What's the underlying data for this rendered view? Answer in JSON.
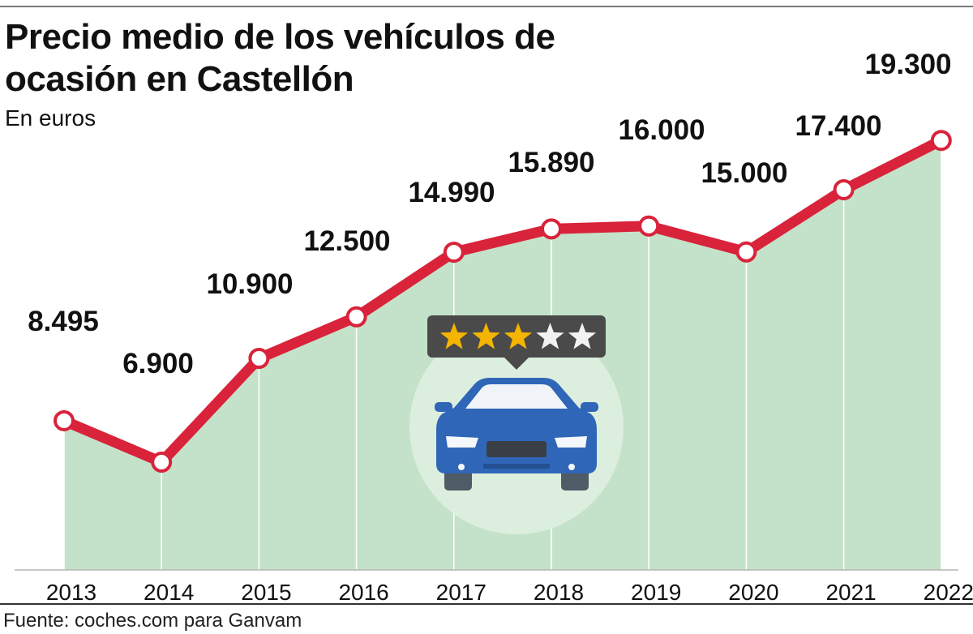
{
  "header": {
    "title": "Precio medio de los vehículos de ocasión en Castellón",
    "subtitle": "En euros"
  },
  "footer": {
    "source": "Fuente: coches.com para Ganvam"
  },
  "colors": {
    "line": "#d9233b",
    "area": "#c4e2c9",
    "marker_fill": "#ffffff",
    "car_circle": "#dceedd",
    "car_body": "#2f66b8",
    "rating_box": "#4a4a4a",
    "star_on": "#f5b400",
    "star_off": "#f2f2f2"
  },
  "illustration": {
    "name": "car-rating-icon",
    "rating": 3,
    "max_rating": 5
  },
  "chart_data": {
    "type": "area",
    "categories": [
      "2013",
      "2014",
      "2015",
      "2016",
      "2017",
      "2018",
      "2019",
      "2020",
      "2021",
      "2022"
    ],
    "values": [
      8495,
      6900,
      10900,
      12500,
      14990,
      15890,
      16000,
      15000,
      17400,
      19300
    ],
    "value_labels": [
      "8.495",
      "6.900",
      "10.900",
      "12.500",
      "14.990",
      "15.890",
      "16.000",
      "15.000",
      "17.400",
      "19.300"
    ],
    "ylabel": "En euros",
    "ylim": [
      0,
      20000
    ],
    "grid": "vertical"
  }
}
